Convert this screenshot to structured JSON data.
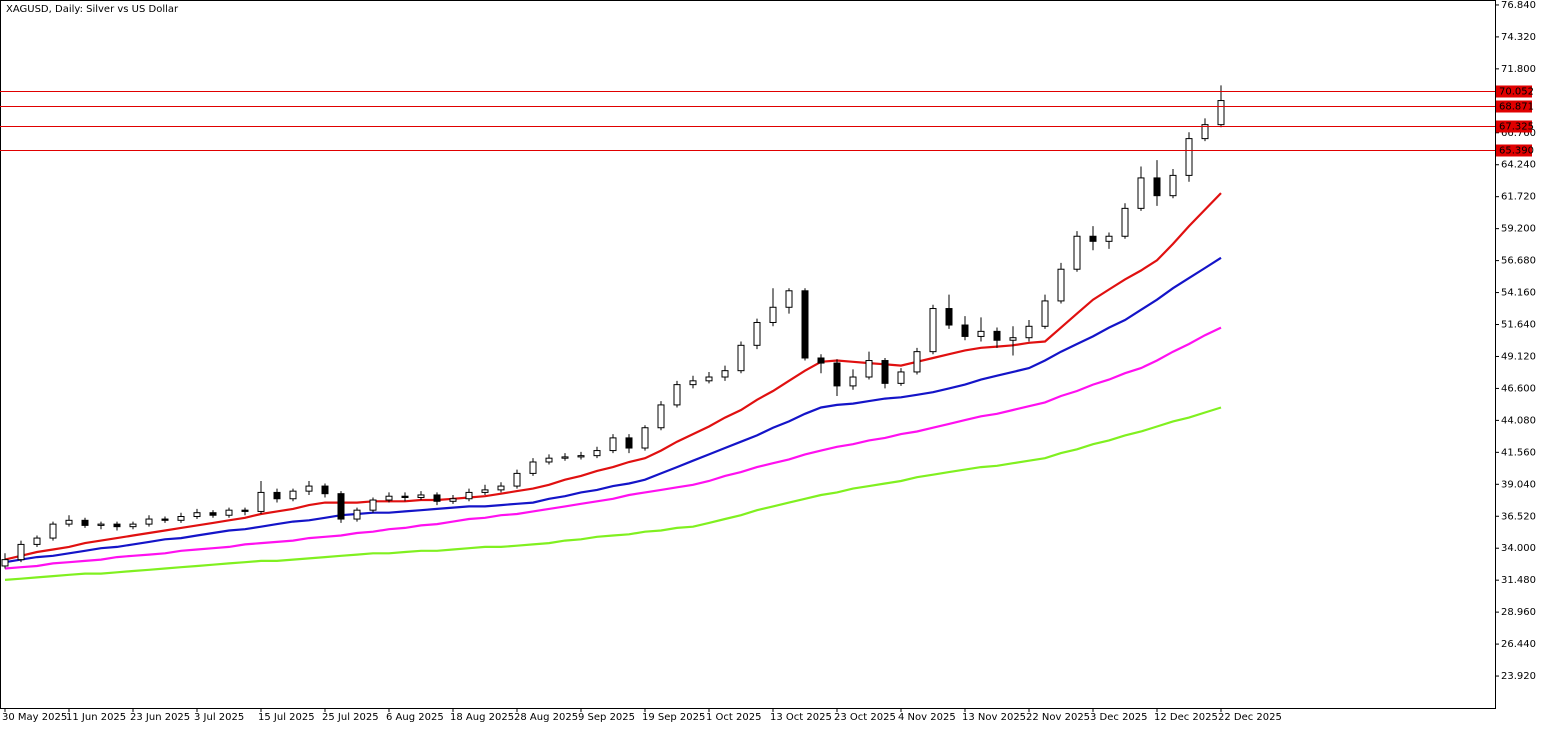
{
  "chart_data": {
    "type": "candlestick",
    "title": "XAGUSD, Daily:  Silver vs US Dollar",
    "categories": [
      "30 May 2025",
      null,
      null,
      null,
      "11 Jun 2025",
      null,
      null,
      null,
      "23 Jun 2025",
      null,
      null,
      null,
      "3 Jul 2025",
      null,
      null,
      null,
      "15 Jul 2025",
      null,
      null,
      null,
      "25 Jul 2025",
      null,
      null,
      null,
      "6 Aug 2025",
      null,
      null,
      null,
      "18 Aug 2025",
      null,
      null,
      null,
      "28 Aug 2025",
      null,
      null,
      null,
      "9 Sep 2025",
      null,
      null,
      null,
      "19 Sep 2025",
      null,
      null,
      null,
      "1 Oct 2025",
      null,
      null,
      null,
      "13 Oct 2025",
      null,
      null,
      null,
      "23 Oct 2025",
      null,
      null,
      null,
      "4 Nov 2025",
      null,
      null,
      null,
      "13 Nov 2025",
      null,
      null,
      null,
      "22 Nov 2025",
      null,
      null,
      null,
      "3 Dec 2025",
      null,
      null,
      null,
      "12 Dec 2025",
      null,
      null,
      null,
      "22 Dec 2025"
    ],
    "open": [
      32.6,
      33.1,
      34.3,
      34.8,
      35.9,
      36.2,
      35.8,
      35.9,
      35.7,
      35.9,
      36.3,
      36.2,
      36.5,
      36.8,
      36.6,
      37.0,
      36.9,
      38.4,
      37.9,
      38.5,
      38.9,
      38.3,
      36.3,
      37.0,
      37.8,
      38.1,
      38.0,
      38.2,
      37.7,
      37.9,
      38.4,
      38.6,
      38.9,
      39.9,
      40.8,
      41.1,
      41.2,
      41.3,
      41.7,
      42.7,
      41.9,
      43.5,
      45.3,
      46.9,
      47.2,
      47.5,
      48.0,
      50.0,
      51.8,
      53.0,
      54.3,
      49.0,
      48.6,
      46.8,
      47.5,
      48.8,
      47.0,
      47.9,
      49.5,
      52.9,
      51.6,
      50.7,
      51.1,
      50.4,
      50.6,
      51.5,
      53.5,
      56.0,
      58.6,
      58.2,
      58.6,
      60.8,
      63.2,
      61.8,
      63.4,
      66.3,
      67.4
    ],
    "high": [
      33.6,
      34.6,
      35.0,
      36.1,
      36.6,
      36.4,
      36.1,
      36.1,
      36.1,
      36.6,
      36.5,
      36.8,
      37.1,
      37.0,
      37.2,
      37.2,
      39.3,
      38.7,
      38.7,
      39.3,
      39.1,
      38.5,
      37.2,
      38.0,
      38.4,
      38.4,
      38.5,
      38.4,
      38.2,
      38.7,
      39.0,
      39.2,
      40.2,
      41.1,
      41.4,
      41.5,
      41.6,
      42.0,
      43.0,
      43.0,
      43.7,
      45.6,
      47.2,
      47.6,
      47.9,
      48.4,
      50.3,
      52.1,
      54.5,
      54.5,
      54.5,
      49.3,
      48.9,
      48.1,
      49.5,
      49.0,
      48.2,
      49.8,
      53.2,
      54.0,
      52.3,
      52.2,
      51.4,
      51.5,
      52.0,
      54.0,
      56.5,
      59.0,
      59.4,
      58.9,
      61.2,
      64.1,
      64.6,
      63.9,
      66.8,
      67.9,
      70.5
    ],
    "low": [
      32.4,
      32.9,
      34.1,
      34.6,
      35.7,
      35.6,
      35.5,
      35.4,
      35.5,
      35.7,
      36.0,
      36.0,
      36.3,
      36.4,
      36.4,
      36.6,
      36.7,
      37.6,
      37.7,
      38.2,
      38.0,
      36.0,
      36.1,
      36.8,
      37.6,
      37.7,
      37.8,
      37.4,
      37.5,
      37.7,
      38.2,
      38.4,
      38.7,
      39.7,
      40.6,
      40.9,
      41.0,
      41.1,
      41.5,
      41.5,
      41.7,
      43.3,
      45.1,
      46.6,
      47.0,
      47.2,
      47.8,
      49.7,
      51.5,
      52.5,
      48.8,
      47.8,
      46.0,
      46.5,
      47.3,
      46.6,
      46.8,
      47.7,
      49.3,
      51.3,
      50.4,
      50.3,
      49.8,
      49.2,
      50.3,
      51.3,
      53.3,
      55.8,
      57.5,
      57.6,
      58.4,
      60.6,
      61.0,
      61.6,
      62.9,
      66.1,
      67.2
    ],
    "close": [
      33.1,
      34.3,
      34.8,
      35.9,
      36.2,
      35.8,
      35.9,
      35.7,
      35.9,
      36.3,
      36.2,
      36.5,
      36.8,
      36.6,
      37.0,
      36.9,
      38.4,
      37.9,
      38.5,
      38.9,
      38.3,
      36.3,
      37.0,
      37.8,
      38.1,
      38.0,
      38.2,
      37.7,
      37.9,
      38.4,
      38.6,
      38.9,
      39.9,
      40.8,
      41.1,
      41.2,
      41.3,
      41.7,
      42.7,
      41.9,
      43.5,
      45.3,
      46.9,
      47.2,
      47.5,
      48.0,
      50.0,
      51.8,
      53.0,
      54.3,
      49.0,
      48.6,
      46.8,
      47.5,
      48.8,
      47.0,
      47.9,
      49.5,
      52.9,
      51.6,
      50.7,
      51.1,
      50.4,
      50.6,
      51.5,
      53.5,
      56.0,
      58.6,
      58.2,
      58.6,
      60.8,
      63.2,
      61.8,
      63.4,
      66.3,
      67.4,
      69.3
    ],
    "up_color": "#ffffff",
    "down_color": "#000000",
    "series": [
      {
        "color": "#e01010",
        "values": [
          33.1,
          33.4,
          33.7,
          33.9,
          34.1,
          34.4,
          34.6,
          34.8,
          35.0,
          35.2,
          35.4,
          35.6,
          35.8,
          36.0,
          36.2,
          36.4,
          36.7,
          36.9,
          37.1,
          37.4,
          37.6,
          37.6,
          37.6,
          37.7,
          37.7,
          37.7,
          37.8,
          37.8,
          37.9,
          38.0,
          38.1,
          38.3,
          38.5,
          38.7,
          39.0,
          39.4,
          39.7,
          40.1,
          40.4,
          40.8,
          41.1,
          41.7,
          42.4,
          43.0,
          43.6,
          44.3,
          44.9,
          45.7,
          46.4,
          47.2,
          48.0,
          48.7,
          48.8,
          48.7,
          48.6,
          48.5,
          48.4,
          48.7,
          49.0,
          49.3,
          49.6,
          49.8,
          49.9,
          50.0,
          50.2,
          50.3,
          51.4,
          52.5,
          53.6,
          54.4,
          55.2,
          55.9,
          56.7,
          58.0,
          59.4,
          60.7,
          62.0
        ]
      },
      {
        "color": "#1414c8",
        "values": [
          32.9,
          33.1,
          33.3,
          33.4,
          33.6,
          33.8,
          34.0,
          34.1,
          34.3,
          34.5,
          34.7,
          34.8,
          35.0,
          35.2,
          35.4,
          35.5,
          35.7,
          35.9,
          36.1,
          36.2,
          36.4,
          36.6,
          36.7,
          36.8,
          36.8,
          36.9,
          37.0,
          37.1,
          37.2,
          37.3,
          37.3,
          37.4,
          37.5,
          37.6,
          37.9,
          38.1,
          38.4,
          38.6,
          38.9,
          39.1,
          39.4,
          39.9,
          40.4,
          40.9,
          41.4,
          41.9,
          42.4,
          42.9,
          43.5,
          44.0,
          44.6,
          45.1,
          45.3,
          45.4,
          45.6,
          45.8,
          45.9,
          46.1,
          46.3,
          46.6,
          46.9,
          47.3,
          47.6,
          47.9,
          48.2,
          48.8,
          49.5,
          50.1,
          50.7,
          51.4,
          52.0,
          52.8,
          53.6,
          54.5,
          55.3,
          56.1,
          56.9
        ]
      },
      {
        "color": "#ff10f0",
        "values": [
          32.4,
          32.5,
          32.6,
          32.8,
          32.9,
          33.0,
          33.1,
          33.3,
          33.4,
          33.5,
          33.6,
          33.8,
          33.9,
          34.0,
          34.1,
          34.3,
          34.4,
          34.5,
          34.6,
          34.8,
          34.9,
          35.0,
          35.2,
          35.3,
          35.5,
          35.6,
          35.8,
          35.9,
          36.1,
          36.3,
          36.4,
          36.6,
          36.7,
          36.9,
          37.1,
          37.3,
          37.5,
          37.7,
          37.9,
          38.2,
          38.4,
          38.6,
          38.8,
          39.0,
          39.3,
          39.7,
          40.0,
          40.4,
          40.7,
          41.0,
          41.4,
          41.7,
          42.0,
          42.2,
          42.5,
          42.7,
          43.0,
          43.2,
          43.5,
          43.8,
          44.1,
          44.4,
          44.6,
          44.9,
          45.2,
          45.5,
          46.0,
          46.4,
          46.9,
          47.3,
          47.8,
          48.2,
          48.8,
          49.5,
          50.1,
          50.8,
          51.4
        ]
      },
      {
        "color": "#80f020",
        "values": [
          31.5,
          31.6,
          31.7,
          31.8,
          31.9,
          32.0,
          32.0,
          32.1,
          32.2,
          32.3,
          32.4,
          32.5,
          32.6,
          32.7,
          32.8,
          32.9,
          33.0,
          33.0,
          33.1,
          33.2,
          33.3,
          33.4,
          33.5,
          33.6,
          33.6,
          33.7,
          33.8,
          33.8,
          33.9,
          34.0,
          34.1,
          34.1,
          34.2,
          34.3,
          34.4,
          34.6,
          34.7,
          34.9,
          35.0,
          35.1,
          35.3,
          35.4,
          35.6,
          35.7,
          36.0,
          36.3,
          36.6,
          37.0,
          37.3,
          37.6,
          37.9,
          38.2,
          38.4,
          38.7,
          38.9,
          39.1,
          39.3,
          39.6,
          39.8,
          40.0,
          40.2,
          40.4,
          40.5,
          40.7,
          40.9,
          41.1,
          41.5,
          41.8,
          42.2,
          42.5,
          42.9,
          43.2,
          43.6,
          44.0,
          44.3,
          44.7,
          45.1
        ]
      }
    ],
    "levels": [
      {
        "value": 70.052,
        "label": "70.052"
      },
      {
        "value": 68.871,
        "label": "68.871"
      },
      {
        "value": 67.325,
        "label": "67.325"
      },
      {
        "value": 65.39,
        "label": "65.390"
      }
    ],
    "level_color": "#e00000",
    "ylim": [
      21.4,
      77.23
    ],
    "yticks": [
      {
        "value": 23.92,
        "label": "23.920"
      },
      {
        "value": 26.44,
        "label": "26.440"
      },
      {
        "value": 28.96,
        "label": "28.960"
      },
      {
        "value": 31.48,
        "label": "31.480"
      },
      {
        "value": 34.0,
        "label": "34.000"
      },
      {
        "value": 36.52,
        "label": "36.520"
      },
      {
        "value": 39.04,
        "label": "39.040"
      },
      {
        "value": 41.56,
        "label": "41.560"
      },
      {
        "value": 44.08,
        "label": "44.080"
      },
      {
        "value": 46.6,
        "label": "46.600"
      },
      {
        "value": 49.12,
        "label": "49.120"
      },
      {
        "value": 51.64,
        "label": "51.640"
      },
      {
        "value": 54.16,
        "label": "54.160"
      },
      {
        "value": 56.68,
        "label": "56.680"
      },
      {
        "value": 59.2,
        "label": "59.200"
      },
      {
        "value": 61.72,
        "label": "61.720"
      },
      {
        "value": 64.24,
        "label": "64.240"
      },
      {
        "value": 66.76,
        "label": "66.760"
      },
      {
        "value": 71.8,
        "label": "71.800"
      },
      {
        "value": 74.32,
        "label": "74.320"
      },
      {
        "value": 76.84,
        "label": "76.840"
      }
    ]
  }
}
